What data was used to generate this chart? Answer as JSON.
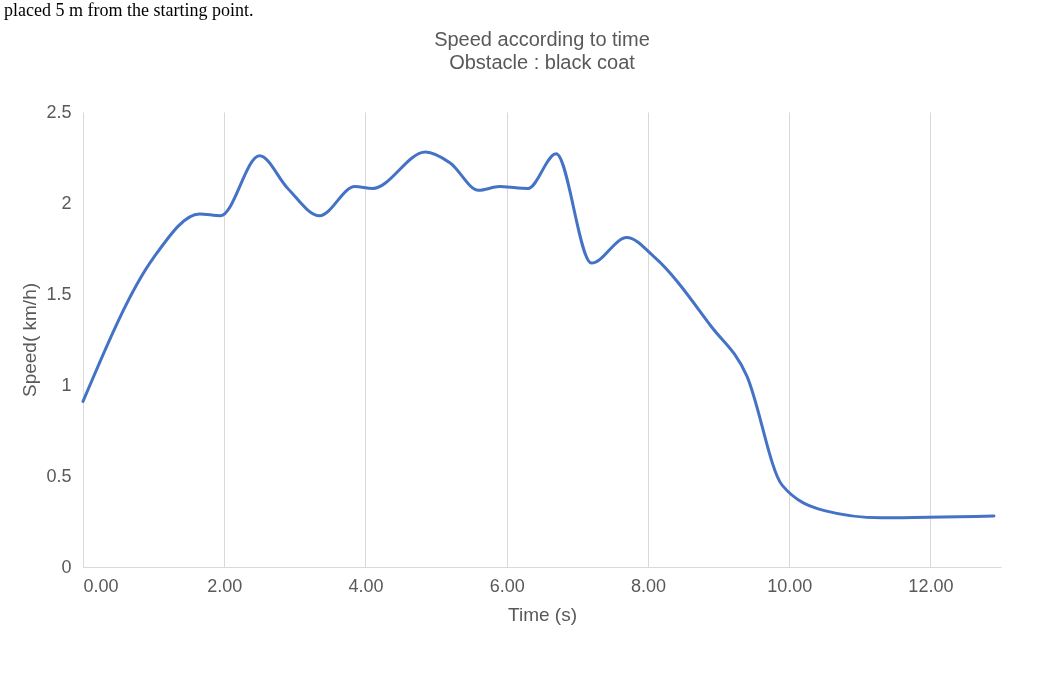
{
  "chart_data": {
    "type": "line",
    "title": "Speed according to time",
    "subtitle": "Obstacle : black coat",
    "xlabel": "Time (s)",
    "ylabel": "Speed( km/h)",
    "annotations": [
      "placed 5 m from the starting point."
    ],
    "x": [
      0,
      1,
      1.65,
      1.95,
      2.5,
      2.9,
      3.35,
      3.85,
      4.1,
      4.85,
      5.2,
      5.6,
      5.9,
      6.3,
      6.7,
      7.2,
      7.7,
      8.1,
      8.9,
      9.4,
      9.9,
      10.5,
      11.3,
      12.9
    ],
    "series": [
      {
        "color": "#4472c4",
        "values": [
          0.91,
          1.7,
          1.94,
          1.93,
          2.26,
          2.08,
          1.93,
          2.09,
          2.08,
          2.28,
          2.22,
          2.07,
          2.09,
          2.08,
          2.27,
          1.67,
          1.81,
          1.7,
          1.32,
          1.05,
          0.45,
          0.31,
          0.27,
          0.28
        ]
      }
    ],
    "xlim": [
      0,
      13
    ],
    "xticks": [
      {
        "value": 0,
        "label": "0.00"
      },
      {
        "value": 2,
        "label": "2.00"
      },
      {
        "value": 4,
        "label": "4.00"
      },
      {
        "value": 6,
        "label": "6.00"
      },
      {
        "value": 8,
        "label": "8.00"
      },
      {
        "value": 10,
        "label": "10.00"
      },
      {
        "value": 12,
        "label": "12.00"
      }
    ],
    "ylim": [
      0,
      2.5
    ],
    "yticks": [
      0,
      0.5,
      1,
      1.5,
      2,
      2.5
    ],
    "grid": "x",
    "marker": "none",
    "line_style": "solid"
  }
}
